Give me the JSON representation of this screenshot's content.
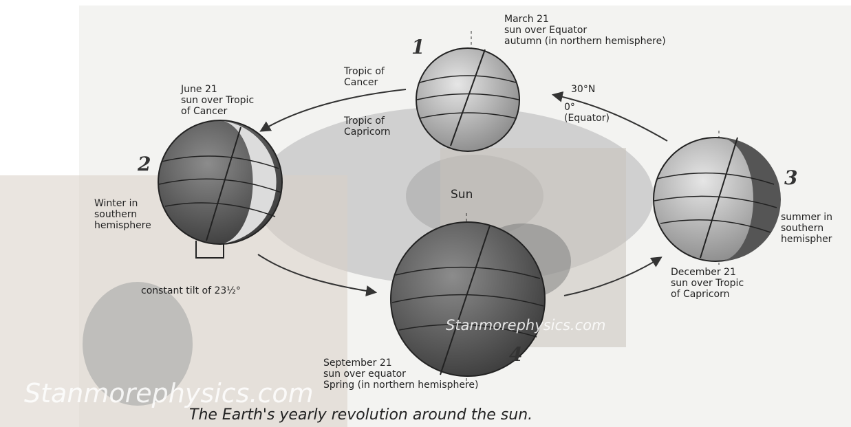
{
  "numbers": [
    "1",
    "2",
    "3",
    "4"
  ],
  "labels": [
    {
      "lines": [
        "March 21",
        "sun over Equator",
        "autumn (in northern hemisphere)"
      ]
    },
    {
      "lines": [
        "Tropic of",
        "Cancer"
      ]
    },
    {
      "lines": [
        "30°N"
      ]
    },
    {
      "lines": [
        "0°",
        "(Equator)"
      ]
    },
    {
      "lines": [
        "Tropic of",
        "Capricorn"
      ]
    },
    {
      "lines": [
        "June 21",
        "sun over Tropic",
        "of Cancer"
      ]
    },
    {
      "lines": [
        "Winter in",
        "southern",
        "hemisphere"
      ]
    },
    {
      "lines": [
        "constant tilt of 23½°"
      ]
    },
    {
      "lines": [
        "Sun"
      ]
    },
    {
      "lines": [
        "summer in",
        "southern",
        "hemispher"
      ]
    },
    {
      "lines": [
        "December 21",
        "sun over Tropic",
        "of Capricorn"
      ]
    },
    {
      "lines": [
        "September 21",
        "sun over equator",
        "Spring (in northern hemisphere)"
      ]
    }
  ],
  "watermarks": [
    "Stanmorephysics.com",
    "Stanmorephysics.com"
  ],
  "caption": "The Earth's yearly revolution around the sun."
}
